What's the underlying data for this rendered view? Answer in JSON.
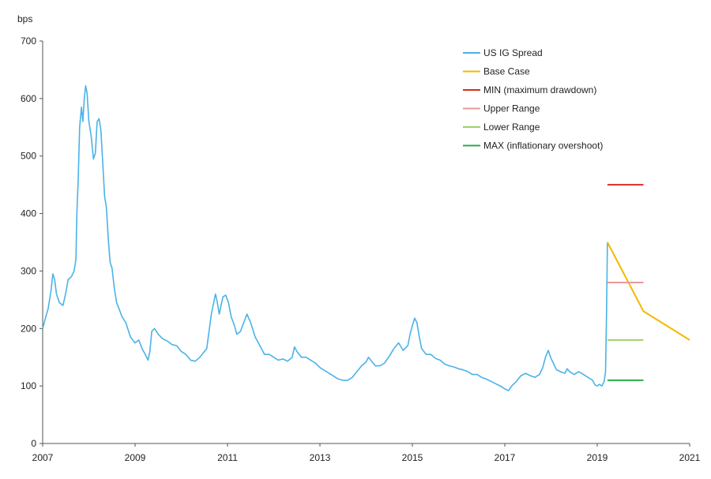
{
  "chart_data": {
    "type": "line",
    "ylabel": "bps",
    "ylim": [
      0,
      700
    ],
    "xlim": [
      2007.0,
      2021.0
    ],
    "yticks": [
      0,
      100,
      200,
      300,
      400,
      500,
      600,
      700
    ],
    "xticks": [
      "2007",
      "2009",
      "2011",
      "2013",
      "2015",
      "2017",
      "2019",
      "2021"
    ],
    "grid": false,
    "legend_position": "top-right",
    "legend": [
      {
        "label": "US IG Spread",
        "color": "#4ab3e6"
      },
      {
        "label": "Base Case",
        "color": "#f5b800"
      },
      {
        "label": "MIN (maximum drawdown)",
        "color": "#d62d20"
      },
      {
        "label": "Upper Range",
        "color": "#e79a9a"
      },
      {
        "label": "Lower Range",
        "color": "#9ed16b"
      },
      {
        "label": "MAX (inflationary overshoot)",
        "color": "#2ea84f"
      }
    ],
    "series": [
      {
        "name": "US IG Spread",
        "color": "#4ab3e6",
        "points": [
          [
            2007.0,
            200
          ],
          [
            2007.05,
            215
          ],
          [
            2007.12,
            235
          ],
          [
            2007.18,
            265
          ],
          [
            2007.22,
            295
          ],
          [
            2007.26,
            285
          ],
          [
            2007.3,
            260
          ],
          [
            2007.36,
            245
          ],
          [
            2007.44,
            240
          ],
          [
            2007.5,
            262
          ],
          [
            2007.55,
            285
          ],
          [
            2007.62,
            290
          ],
          [
            2007.68,
            300
          ],
          [
            2007.72,
            320
          ],
          [
            2007.74,
            400
          ],
          [
            2007.77,
            460
          ],
          [
            2007.8,
            550
          ],
          [
            2007.84,
            585
          ],
          [
            2007.87,
            560
          ],
          [
            2007.9,
            600
          ],
          [
            2007.93,
            622
          ],
          [
            2007.96,
            610
          ],
          [
            2008.0,
            560
          ],
          [
            2008.05,
            535
          ],
          [
            2008.1,
            495
          ],
          [
            2008.14,
            505
          ],
          [
            2008.18,
            560
          ],
          [
            2008.22,
            565
          ],
          [
            2008.26,
            545
          ],
          [
            2008.3,
            490
          ],
          [
            2008.34,
            430
          ],
          [
            2008.38,
            410
          ],
          [
            2008.42,
            355
          ],
          [
            2008.46,
            315
          ],
          [
            2008.5,
            305
          ],
          [
            2008.55,
            270
          ],
          [
            2008.6,
            245
          ],
          [
            2008.65,
            235
          ],
          [
            2008.72,
            220
          ],
          [
            2008.8,
            210
          ],
          [
            2008.9,
            185
          ],
          [
            2009.0,
            175
          ],
          [
            2009.08,
            180
          ],
          [
            2009.15,
            165
          ],
          [
            2009.22,
            155
          ],
          [
            2009.28,
            145
          ],
          [
            2009.32,
            160
          ],
          [
            2009.36,
            195
          ],
          [
            2009.42,
            200
          ],
          [
            2009.5,
            190
          ],
          [
            2009.6,
            182
          ],
          [
            2009.7,
            178
          ],
          [
            2009.8,
            172
          ],
          [
            2009.9,
            170
          ],
          [
            2010.0,
            160
          ],
          [
            2010.1,
            155
          ],
          [
            2010.2,
            145
          ],
          [
            2010.3,
            143
          ],
          [
            2010.4,
            150
          ],
          [
            2010.5,
            160
          ],
          [
            2010.55,
            165
          ],
          [
            2010.6,
            195
          ],
          [
            2010.65,
            225
          ],
          [
            2010.7,
            245
          ],
          [
            2010.74,
            260
          ],
          [
            2010.78,
            245
          ],
          [
            2010.82,
            225
          ],
          [
            2010.86,
            240
          ],
          [
            2010.9,
            255
          ],
          [
            2010.96,
            258
          ],
          [
            2011.02,
            245
          ],
          [
            2011.08,
            220
          ],
          [
            2011.15,
            205
          ],
          [
            2011.2,
            190
          ],
          [
            2011.28,
            195
          ],
          [
            2011.35,
            210
          ],
          [
            2011.42,
            225
          ],
          [
            2011.5,
            210
          ],
          [
            2011.6,
            185
          ],
          [
            2011.7,
            170
          ],
          [
            2011.8,
            155
          ],
          [
            2011.9,
            155
          ],
          [
            2012.0,
            150
          ],
          [
            2012.1,
            145
          ],
          [
            2012.2,
            147
          ],
          [
            2012.3,
            143
          ],
          [
            2012.4,
            150
          ],
          [
            2012.45,
            168
          ],
          [
            2012.5,
            160
          ],
          [
            2012.6,
            150
          ],
          [
            2012.7,
            150
          ],
          [
            2012.8,
            145
          ],
          [
            2012.9,
            140
          ],
          [
            2013.0,
            132
          ],
          [
            2013.1,
            127
          ],
          [
            2013.2,
            122
          ],
          [
            2013.3,
            117
          ],
          [
            2013.4,
            112
          ],
          [
            2013.5,
            110
          ],
          [
            2013.6,
            110
          ],
          [
            2013.7,
            115
          ],
          [
            2013.8,
            125
          ],
          [
            2013.9,
            135
          ],
          [
            2014.0,
            142
          ],
          [
            2014.05,
            150
          ],
          [
            2014.1,
            145
          ],
          [
            2014.2,
            135
          ],
          [
            2014.3,
            135
          ],
          [
            2014.4,
            140
          ],
          [
            2014.5,
            152
          ],
          [
            2014.6,
            165
          ],
          [
            2014.7,
            175
          ],
          [
            2014.8,
            162
          ],
          [
            2014.9,
            170
          ],
          [
            2014.95,
            190
          ],
          [
            2015.0,
            205
          ],
          [
            2015.05,
            218
          ],
          [
            2015.1,
            210
          ],
          [
            2015.15,
            185
          ],
          [
            2015.2,
            165
          ],
          [
            2015.3,
            155
          ],
          [
            2015.4,
            155
          ],
          [
            2015.5,
            148
          ],
          [
            2015.6,
            145
          ],
          [
            2015.7,
            138
          ],
          [
            2015.8,
            135
          ],
          [
            2015.9,
            133
          ],
          [
            2016.0,
            130
          ],
          [
            2016.1,
            128
          ],
          [
            2016.2,
            125
          ],
          [
            2016.3,
            120
          ],
          [
            2016.4,
            120
          ],
          [
            2016.5,
            115
          ],
          [
            2016.6,
            112
          ],
          [
            2016.7,
            108
          ],
          [
            2016.8,
            104
          ],
          [
            2016.9,
            100
          ],
          [
            2017.0,
            95
          ],
          [
            2017.08,
            92
          ],
          [
            2017.15,
            100
          ],
          [
            2017.25,
            108
          ],
          [
            2017.35,
            118
          ],
          [
            2017.45,
            122
          ],
          [
            2017.55,
            118
          ],
          [
            2017.65,
            115
          ],
          [
            2017.75,
            120
          ],
          [
            2017.82,
            132
          ],
          [
            2017.88,
            150
          ],
          [
            2017.94,
            162
          ],
          [
            2018.0,
            148
          ],
          [
            2018.05,
            140
          ],
          [
            2018.12,
            128
          ],
          [
            2018.2,
            125
          ],
          [
            2018.3,
            122
          ],
          [
            2018.35,
            130
          ],
          [
            2018.4,
            125
          ],
          [
            2018.5,
            120
          ],
          [
            2018.6,
            125
          ],
          [
            2018.7,
            120
          ],
          [
            2018.8,
            115
          ],
          [
            2018.9,
            110
          ],
          [
            2018.95,
            102
          ],
          [
            2019.0,
            100
          ],
          [
            2019.05,
            103
          ],
          [
            2019.1,
            100
          ],
          [
            2019.15,
            108
          ],
          [
            2019.18,
            125
          ],
          [
            2019.2,
            220
          ],
          [
            2019.22,
            350
          ]
        ]
      },
      {
        "name": "Base Case",
        "color": "#f5b800",
        "points": [
          [
            2019.22,
            350
          ],
          [
            2020.0,
            230
          ],
          [
            2021.0,
            180
          ]
        ]
      },
      {
        "name": "MIN (maximum drawdown)",
        "color": "#d62d20",
        "points": [
          [
            2019.22,
            450
          ],
          [
            2020.0,
            450
          ]
        ]
      },
      {
        "name": "Upper Range",
        "color": "#e79a9a",
        "points": [
          [
            2019.22,
            280
          ],
          [
            2020.0,
            280
          ]
        ]
      },
      {
        "name": "Lower Range",
        "color": "#9ed16b",
        "points": [
          [
            2019.22,
            180
          ],
          [
            2020.0,
            180
          ]
        ]
      },
      {
        "name": "MAX (inflationary overshoot)",
        "color": "#2ea84f",
        "points": [
          [
            2019.22,
            110
          ],
          [
            2020.0,
            110
          ]
        ]
      }
    ]
  }
}
